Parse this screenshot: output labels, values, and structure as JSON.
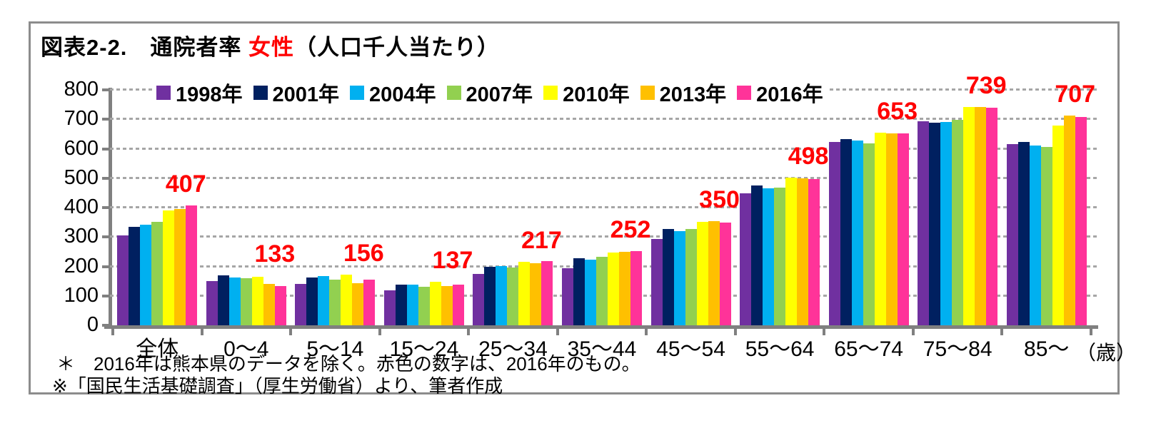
{
  "figure": {
    "title": {
      "prefix": "図表2-2.　通院者率 ",
      "highlight": "女性",
      "suffix": "（人口千人当たり）"
    },
    "axis_unit": "（歳）",
    "footnotes": [
      "＊　2016年は熊本県のデータを除く。赤色の数字は、2016年のもの。",
      "※「国民生活基礎調査」（厚生労働省）より、筆者作成"
    ]
  },
  "chart_data": {
    "type": "bar",
    "title": "図表2-2. 通院者率 女性（人口千人当たり）",
    "xlabel": "歳",
    "ylabel": "",
    "ylim": [
      0,
      800
    ],
    "ytick_interval": 100,
    "grid": "horizontal-dashed",
    "legend_position": "top-inside",
    "categories": [
      "全体",
      "0～4",
      "5～14",
      "15～24",
      "25～34",
      "35～44",
      "45～54",
      "55～64",
      "65～74",
      "75～84",
      "85～"
    ],
    "series": [
      {
        "name": "1998年",
        "color": "#7030A0",
        "values": [
          306,
          151,
          140,
          119,
          175,
          194,
          293,
          449,
          622,
          693,
          615
        ]
      },
      {
        "name": "2001年",
        "color": "#002060",
        "values": [
          335,
          170,
          163,
          137,
          198,
          227,
          328,
          475,
          633,
          688,
          622
        ]
      },
      {
        "name": "2004年",
        "color": "#00B0F0",
        "values": [
          343,
          163,
          168,
          139,
          202,
          223,
          320,
          466,
          628,
          692,
          611
        ]
      },
      {
        "name": "2007年",
        "color": "#92D050",
        "values": [
          352,
          160,
          155,
          131,
          197,
          233,
          327,
          469,
          617,
          697,
          607
        ]
      },
      {
        "name": "2010年",
        "color": "#FFFF00",
        "values": [
          390,
          166,
          172,
          148,
          215,
          248,
          351,
          502,
          654,
          742,
          679
        ]
      },
      {
        "name": "2013年",
        "color": "#FFC000",
        "values": [
          395,
          141,
          143,
          134,
          210,
          249,
          354,
          500,
          653,
          741,
          712
        ]
      },
      {
        "name": "2016年",
        "color": "#FF3399",
        "values": [
          407,
          133,
          156,
          137,
          217,
          252,
          350,
          498,
          653,
          739,
          707
        ]
      }
    ],
    "red_labels": [
      "407",
      "133",
      "156",
      "137",
      "217",
      "252",
      "350",
      "498",
      "653",
      "739",
      "707"
    ],
    "red_label_color": "#FF0000",
    "red_label_note": "2016年の値",
    "axis_color": "#808080",
    "gridline_color": "#A6A6A6"
  }
}
